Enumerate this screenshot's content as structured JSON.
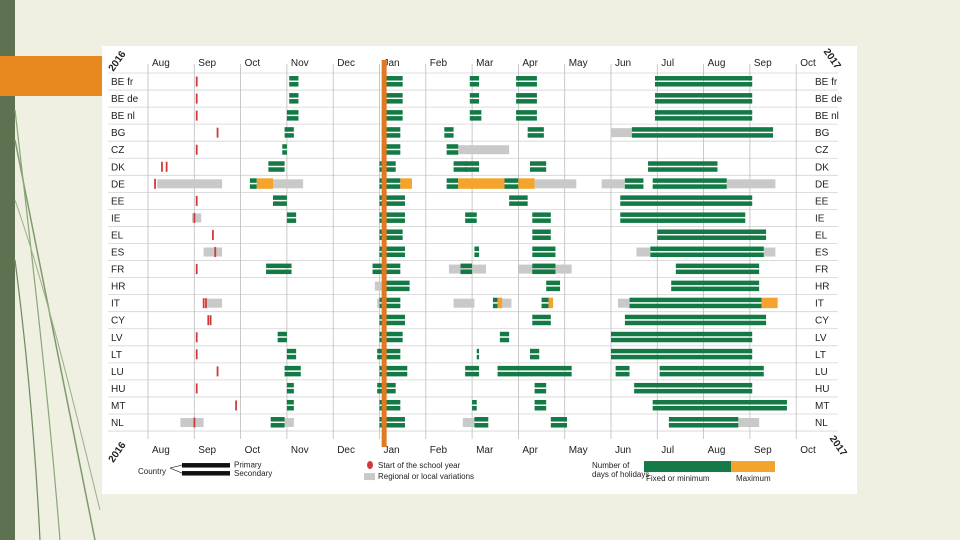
{
  "slide": {
    "accent_color": "#e8891f",
    "sidebar_color": "#5e7251"
  },
  "chart_data": {
    "type": "timeline",
    "title": "",
    "year_start": "2016",
    "year_end": "2017",
    "months": [
      "Aug",
      "Sep",
      "Oct",
      "Nov",
      "Dec",
      "Jan",
      "Feb",
      "Mar",
      "Apr",
      "May",
      "Jun",
      "Jul",
      "Aug",
      "Sep",
      "Oct"
    ],
    "x_unit": "months since 1 Aug 2016",
    "christmas_line": 5.1,
    "colors": {
      "fixed": "#137a45",
      "maximum": "#f4a42c",
      "regional": "#c9c9c9",
      "start": "#cf3b3b",
      "christmas": "#e07a22"
    },
    "countries": [
      {
        "label": "BE fr",
        "fixed": [
          [
            3.05,
            3.25
          ],
          [
            5.1,
            5.5
          ],
          [
            6.95,
            7.15
          ],
          [
            7.95,
            8.4
          ],
          [
            10.95,
            13.05
          ]
        ],
        "max": [],
        "regional": [],
        "start": [
          1.05
        ]
      },
      {
        "label": "BE de",
        "fixed": [
          [
            3.05,
            3.25
          ],
          [
            5.1,
            5.5
          ],
          [
            6.95,
            7.15
          ],
          [
            7.95,
            8.4
          ],
          [
            10.95,
            13.05
          ]
        ],
        "max": [],
        "regional": [],
        "start": [
          1.05
        ]
      },
      {
        "label": "BE nl",
        "fixed": [
          [
            3.0,
            3.25
          ],
          [
            5.05,
            5.5
          ],
          [
            6.95,
            7.2
          ],
          [
            7.95,
            8.4
          ],
          [
            10.95,
            13.05
          ]
        ],
        "max": [],
        "regional": [],
        "start": [
          1.05
        ]
      },
      {
        "label": "BG",
        "fixed": [
          [
            2.95,
            3.15
          ],
          [
            5.05,
            5.45
          ],
          [
            6.4,
            6.6
          ],
          [
            8.2,
            8.55
          ],
          [
            10.45,
            13.5
          ]
        ],
        "max": [],
        "regional": [
          [
            10.0,
            10.45
          ]
        ],
        "start": [
          1.5
        ]
      },
      {
        "label": "CZ",
        "fixed": [
          [
            2.9,
            3.0
          ],
          [
            5.05,
            5.45
          ],
          [
            6.45,
            6.7
          ]
        ],
        "max": [],
        "regional": [
          [
            6.7,
            7.8
          ]
        ],
        "start": [
          1.05
        ]
      },
      {
        "label": "DK",
        "fixed": [
          [
            2.6,
            2.95
          ],
          [
            5.0,
            5.35
          ],
          [
            6.6,
            6.9
          ],
          [
            6.85,
            7.15
          ],
          [
            8.25,
            8.6
          ],
          [
            10.8,
            12.3
          ]
        ],
        "max": [],
        "regional": [],
        "start": [
          0.3,
          0.4
        ]
      },
      {
        "label": "DE",
        "fixed": [
          [
            2.2,
            2.35
          ],
          [
            5.0,
            5.45
          ],
          [
            6.45,
            6.7
          ],
          [
            7.7,
            8.0
          ],
          [
            10.3,
            10.7
          ],
          [
            10.9,
            12.5
          ]
        ],
        "max": [
          [
            2.35,
            2.7
          ],
          [
            5.45,
            5.7
          ],
          [
            6.7,
            7.7
          ],
          [
            8.0,
            8.35
          ]
        ],
        "regional": [
          [
            0.2,
            1.6
          ],
          [
            2.7,
            3.35
          ],
          [
            8.35,
            9.25
          ],
          [
            9.8,
            10.3
          ],
          [
            12.5,
            13.55
          ]
        ],
        "start": [
          0.15
        ]
      },
      {
        "label": "EE",
        "fixed": [
          [
            2.7,
            3.0
          ],
          [
            5.0,
            5.55
          ],
          [
            7.8,
            8.2
          ],
          [
            10.2,
            13.05
          ]
        ],
        "max": [],
        "regional": [],
        "start": [
          1.05
        ]
      },
      {
        "label": "IE",
        "fixed": [
          [
            3.0,
            3.2
          ],
          [
            5.0,
            5.55
          ],
          [
            6.95,
            7.1
          ],
          [
            6.85,
            7.0
          ],
          [
            8.3,
            8.7
          ],
          [
            10.2,
            12.9
          ]
        ],
        "max": [],
        "regional": [
          [
            0.95,
            1.15
          ]
        ],
        "start": [
          1.0
        ]
      },
      {
        "label": "EL",
        "fixed": [
          [
            5.0,
            5.5
          ],
          [
            8.3,
            8.7
          ],
          [
            11.0,
            13.35
          ]
        ],
        "max": [],
        "regional": [],
        "start": [
          1.4
        ]
      },
      {
        "label": "ES",
        "fixed": [
          [
            5.0,
            5.55
          ],
          [
            7.05,
            7.15
          ],
          [
            8.3,
            8.8
          ],
          [
            10.85,
            13.3
          ]
        ],
        "max": [],
        "regional": [
          [
            1.2,
            1.6
          ],
          [
            10.55,
            10.85
          ],
          [
            13.3,
            13.55
          ]
        ],
        "start": [
          1.45
        ]
      },
      {
        "label": "FR",
        "fixed": [
          [
            2.55,
            3.1
          ],
          [
            4.85,
            5.45
          ],
          [
            6.75,
            7.0
          ],
          [
            8.3,
            8.8
          ],
          [
            11.4,
            13.2
          ]
        ],
        "max": [],
        "regional": [
          [
            6.5,
            7.3
          ],
          [
            8.0,
            9.15
          ]
        ],
        "start": [
          1.05
        ]
      },
      {
        "label": "HR",
        "fixed": [
          [
            5.1,
            5.65
          ],
          [
            8.6,
            8.9
          ],
          [
            11.3,
            13.2
          ]
        ],
        "max": [],
        "regional": [
          [
            4.9,
            5.1
          ]
        ],
        "start": []
      },
      {
        "label": "IT",
        "fixed": [
          [
            5.0,
            5.45
          ],
          [
            7.45,
            7.55
          ],
          [
            8.5,
            8.65
          ],
          [
            10.4,
            13.25
          ]
        ],
        "max": [
          [
            7.55,
            7.65
          ],
          [
            8.65,
            8.75
          ],
          [
            13.25,
            13.6
          ]
        ],
        "regional": [
          [
            1.25,
            1.6
          ],
          [
            4.95,
            5.0
          ],
          [
            6.6,
            7.05
          ],
          [
            7.65,
            7.85
          ],
          [
            10.15,
            10.4
          ]
        ],
        "start": [
          1.2,
          1.25
        ]
      },
      {
        "label": "CY",
        "fixed": [
          [
            5.0,
            5.55
          ],
          [
            8.3,
            8.7
          ],
          [
            10.3,
            13.35
          ]
        ],
        "max": [],
        "regional": [],
        "start": [
          1.3,
          1.35
        ]
      },
      {
        "label": "LV",
        "fixed": [
          [
            2.8,
            3.0
          ],
          [
            5.0,
            5.5
          ],
          [
            7.6,
            7.8
          ],
          [
            10.0,
            13.05
          ]
        ],
        "max": [],
        "regional": [],
        "start": [
          1.05
        ]
      },
      {
        "label": "LT",
        "fixed": [
          [
            3.0,
            3.2
          ],
          [
            4.95,
            5.45
          ],
          [
            7.1,
            7.15
          ],
          [
            8.25,
            8.45
          ],
          [
            10.0,
            13.05
          ]
        ],
        "max": [],
        "regional": [],
        "start": [
          1.05
        ]
      },
      {
        "label": "LU",
        "fixed": [
          [
            2.95,
            3.3
          ],
          [
            5.0,
            5.6
          ],
          [
            6.85,
            7.15
          ],
          [
            7.55,
            9.15
          ],
          [
            10.1,
            10.4
          ],
          [
            11.05,
            13.3
          ]
        ],
        "max": [],
        "regional": [],
        "start": [
          1.5
        ]
      },
      {
        "label": "HU",
        "fixed": [
          [
            3.0,
            3.15
          ],
          [
            4.95,
            5.35
          ],
          [
            8.35,
            8.6
          ],
          [
            10.5,
            13.05
          ]
        ],
        "max": [],
        "regional": [],
        "start": [
          1.05
        ]
      },
      {
        "label": "MT",
        "fixed": [
          [
            3.0,
            3.15
          ],
          [
            5.0,
            5.45
          ],
          [
            7.0,
            7.1
          ],
          [
            8.35,
            8.6
          ],
          [
            10.9,
            13.8
          ]
        ],
        "max": [],
        "regional": [],
        "start": [
          1.9
        ]
      },
      {
        "label": "NL",
        "fixed": [
          [
            2.65,
            2.95
          ],
          [
            5.0,
            5.55
          ],
          [
            7.05,
            7.35
          ],
          [
            8.7,
            9.05
          ],
          [
            11.25,
            12.75
          ]
        ],
        "max": [],
        "regional": [
          [
            0.7,
            1.2
          ],
          [
            2.95,
            3.15
          ],
          [
            6.8,
            7.05
          ],
          [
            12.75,
            13.2
          ]
        ],
        "start": [
          1.0
        ]
      }
    ],
    "legend": {
      "country": "Country",
      "primary": "Primary",
      "secondary": "Secondary",
      "start": "Start of the school year",
      "regional": "Regional or local variations",
      "number_line1": "Number of",
      "number_line2": "days of holidays",
      "fixed": "Fixed or minimum",
      "maximum": "Maximum"
    }
  }
}
